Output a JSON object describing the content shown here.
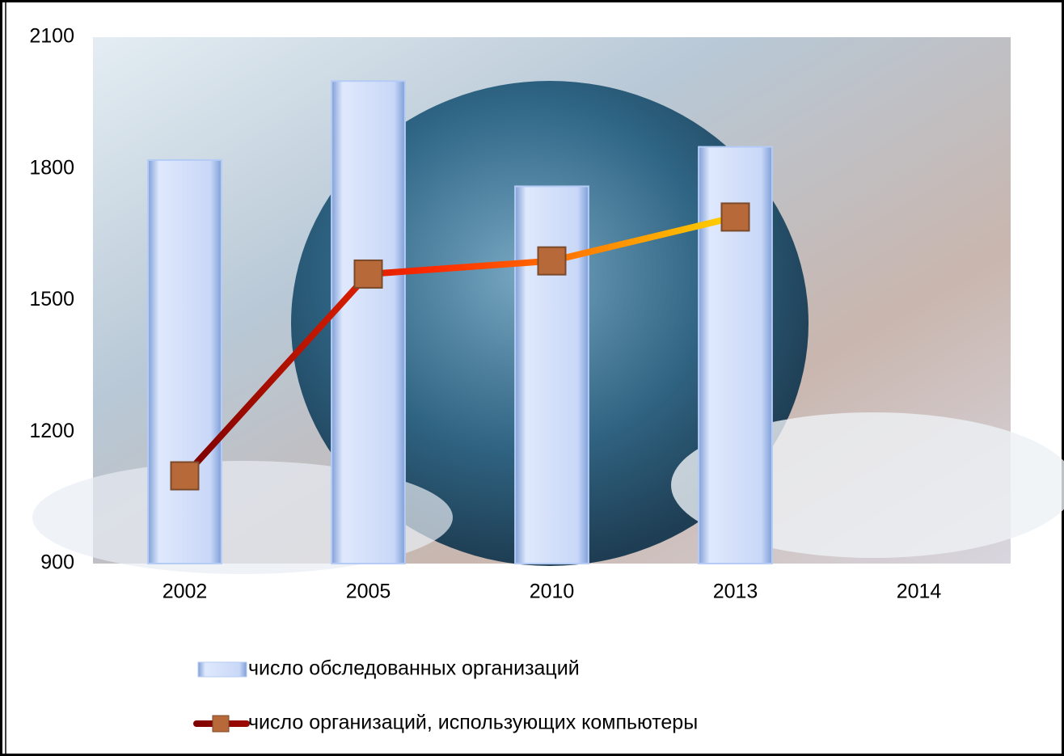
{
  "chart_data": {
    "type": "bar",
    "categories": [
      "2002",
      "2005",
      "2010",
      "2013",
      "2014"
    ],
    "series": [
      {
        "name": "число обследованных организаций",
        "type": "bar",
        "color": "#b4cbf5",
        "values": [
          1820,
          2000,
          1760,
          1850,
          null
        ]
      },
      {
        "name": "число организаций, использующих компьютеры",
        "type": "line",
        "color": "#ff2a00",
        "marker_color": "#b8693a",
        "values": [
          1100,
          1560,
          1590,
          1690,
          null
        ]
      }
    ],
    "ylim": [
      900,
      2100
    ],
    "yticks": [
      900,
      1200,
      1500,
      1800,
      2100
    ],
    "grid": false,
    "legend": "bottom"
  }
}
